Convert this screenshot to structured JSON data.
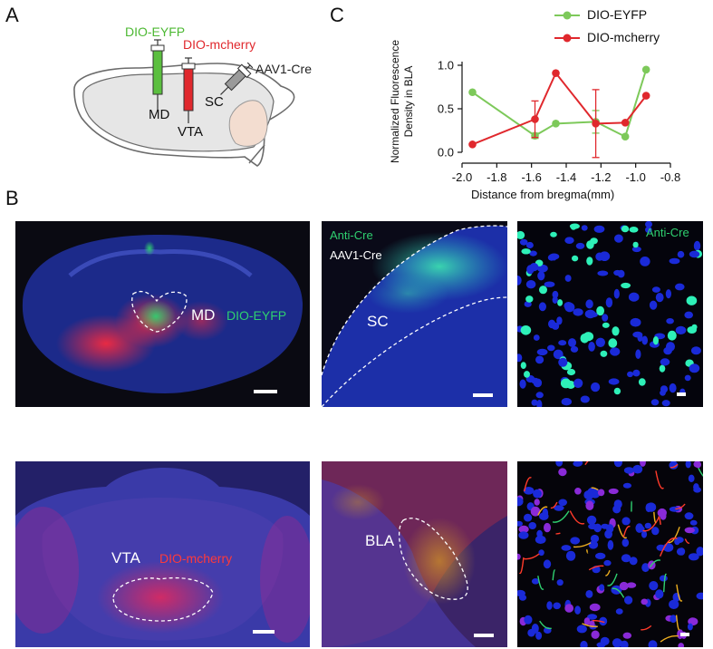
{
  "panel_letters": {
    "a": "A",
    "b": "B",
    "c": "C"
  },
  "panel_a": {
    "label_eyfp": "DIO-EYFP",
    "label_mcherry": "DIO-mcherry",
    "label_aav1": "AAV1-Cre",
    "label_md": "MD",
    "label_vta": "VTA",
    "label_sc": "SC"
  },
  "colors": {
    "eyfp": "#5bbf3f",
    "mcherry": "#e0282d",
    "nuclei": "#1a2ad8",
    "green_signal": "#2fd070"
  },
  "chart_data": {
    "type": "line",
    "title": "",
    "xlabel": "Distance from bregma(mm)",
    "ylabel": "Normalized Fluorescence Density in BLA",
    "ylabel_lines": [
      "Normalized Fluorescence",
      "Density in BLA"
    ],
    "xlim": [
      -2.0,
      -0.8
    ],
    "ylim": [
      0.0,
      1.0
    ],
    "xticks": [
      -2.0,
      -1.8,
      -1.6,
      -1.4,
      -1.2,
      -1.0,
      -0.8
    ],
    "xtick_labels": [
      "-2.0",
      "-1.8",
      "-1.6",
      "-1.4",
      "-1.2",
      "-1.0",
      "-0.8"
    ],
    "yticks": [
      0.0,
      0.5,
      1.0
    ],
    "ytick_labels": [
      "0.0",
      "0.5",
      "1.0"
    ],
    "legend_position": "top-right",
    "series": [
      {
        "name": "DIO-EYFP",
        "color": "#7dc95a",
        "x": [
          -1.94,
          -1.58,
          -1.46,
          -1.23,
          -1.06,
          -0.94
        ],
        "y": [
          0.69,
          0.19,
          0.33,
          0.35,
          0.18,
          0.95
        ],
        "err": [
          0,
          0.03,
          0,
          0.13,
          0,
          0
        ]
      },
      {
        "name": "DIO-mcherry",
        "color": "#e0282d",
        "x": [
          -1.94,
          -1.58,
          -1.46,
          -1.23,
          -1.06,
          -0.94
        ],
        "y": [
          0.09,
          0.38,
          0.91,
          0.33,
          0.34,
          0.65
        ],
        "err": [
          0,
          0.21,
          0,
          0.39,
          0,
          0
        ]
      }
    ]
  },
  "panel_b": {
    "md_label": "MD",
    "eyfp_label": "DIO-EYFP",
    "anti_cre_label": "Anti-Cre",
    "aav1_label": "AAV1-Cre",
    "sc_label": "SC",
    "anti_cre_label_2": "Anti-Cre",
    "vta_label": "VTA",
    "mcherry_label": "DIO-mcherry",
    "bla_label": "BLA"
  }
}
